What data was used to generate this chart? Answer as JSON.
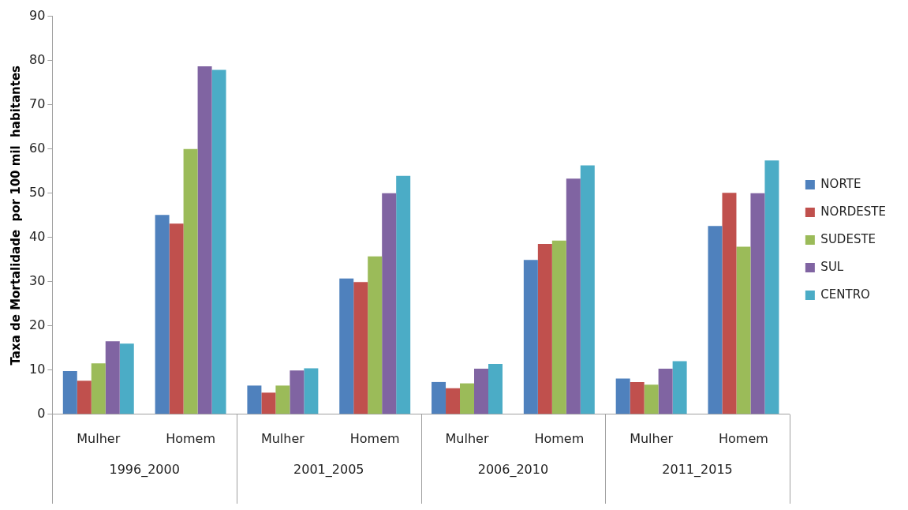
{
  "chart_data": {
    "type": "bar",
    "ylabel": "Taxa de Mortalidade  por 100 mil  habitantes",
    "categories": [
      "Mulher",
      "Homem",
      "Mulher",
      "Homem",
      "Mulher",
      "Homem",
      "Mulher",
      "Homem"
    ],
    "annotations": [
      "1996_2000",
      "2001_2005",
      "2006_2010",
      "2011_2015"
    ],
    "series": [
      {
        "name": "NORTE",
        "color": "#4f81bd",
        "values": [
          9.8,
          45.1,
          6.5,
          30.7,
          7.3,
          34.9,
          8.1,
          42.6
        ]
      },
      {
        "name": "NORDESTE",
        "color": "#c0504d",
        "values": [
          7.6,
          43.1,
          4.9,
          29.9,
          5.9,
          38.5,
          7.3,
          50.1
        ]
      },
      {
        "name": "SUDESTE",
        "color": "#9bbb59",
        "values": [
          11.5,
          60,
          6.5,
          35.7,
          7.0,
          39.3,
          6.7,
          37.9
        ]
      },
      {
        "name": "SUL",
        "color": "#8064a2",
        "values": [
          16.5,
          78.7,
          9.9,
          50,
          10.3,
          53.3,
          10.3,
          50.0
        ]
      },
      {
        "name": "CENTRO",
        "color": "#4bacc6",
        "values": [
          16.0,
          77.9,
          10.4,
          53.9,
          11.4,
          56.3,
          12.0,
          57.4
        ]
      }
    ],
    "ylim": [
      0,
      90
    ],
    "yticks": [
      0,
      10,
      20,
      30,
      40,
      50,
      60,
      70,
      80,
      90
    ],
    "grid": false,
    "legend": "right"
  }
}
